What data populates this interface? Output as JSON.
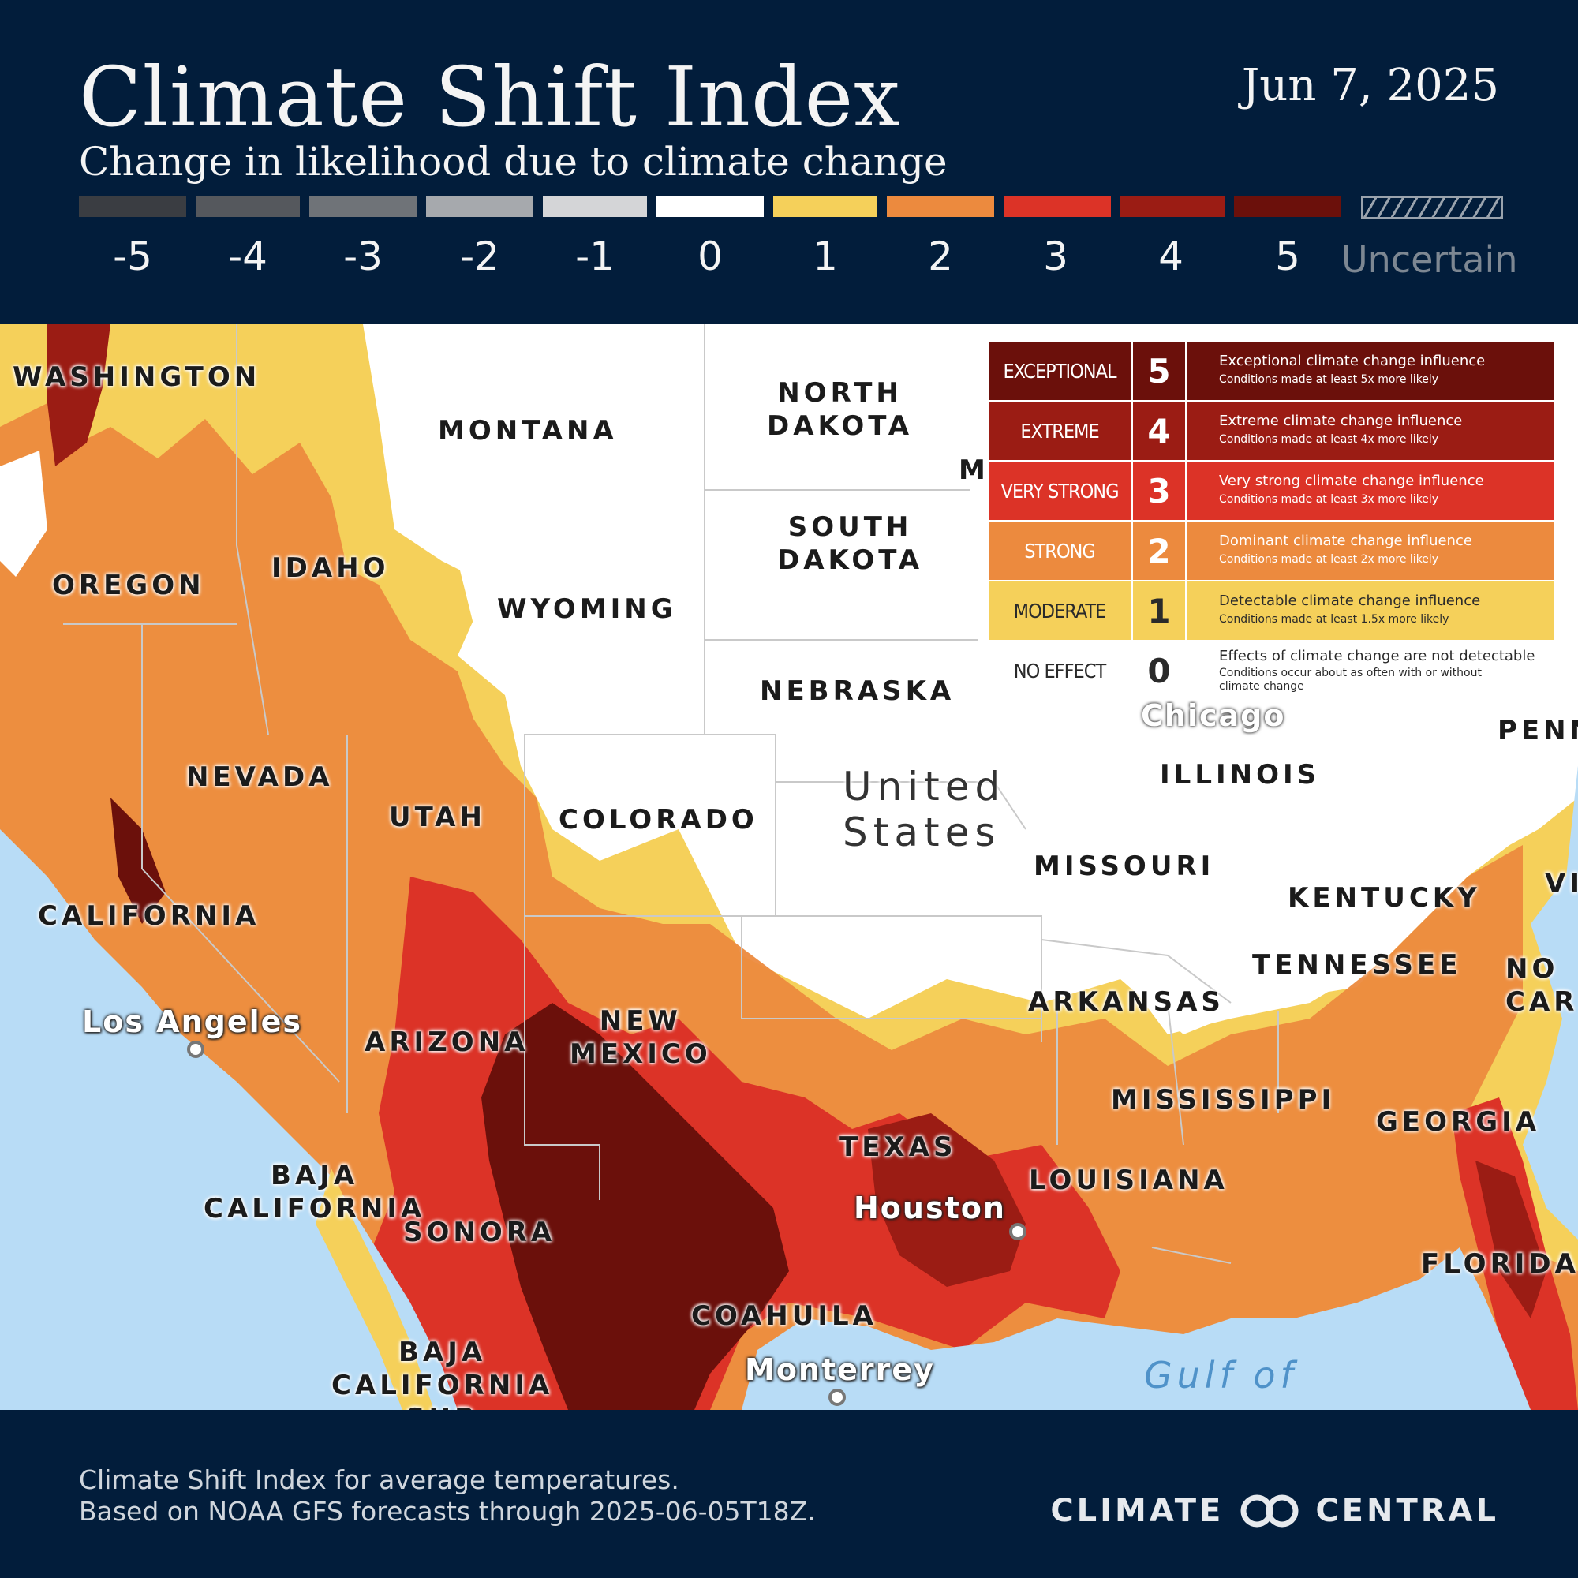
{
  "header": {
    "title": "Climate Shift Index",
    "subtitle": "Change in likelihood due to climate change",
    "date": "Jun 7, 2025"
  },
  "scale": {
    "items": [
      {
        "label": "-5",
        "color": "#3a3d42"
      },
      {
        "label": "-4",
        "color": "#55585d"
      },
      {
        "label": "-3",
        "color": "#6f7378"
      },
      {
        "label": "-2",
        "color": "#a6a9ad"
      },
      {
        "label": "-1",
        "color": "#d4d5d7"
      },
      {
        "label": "0",
        "color": "#ffffff"
      },
      {
        "label": "1",
        "color": "#f5d05a"
      },
      {
        "label": "2",
        "color": "#ec8a3e"
      },
      {
        "label": "3",
        "color": "#dc3327"
      },
      {
        "label": "4",
        "color": "#9b1c14"
      },
      {
        "label": "5",
        "color": "#6b100b"
      }
    ],
    "uncertain_label": "Uncertain"
  },
  "legend": {
    "rows": [
      {
        "category": "EXCEPTIONAL",
        "value": "5",
        "title": "Exceptional climate change influence",
        "detail": "Conditions made at least 5x more likely",
        "bg": "#6b100b",
        "fg": "#ffffff"
      },
      {
        "category": "EXTREME",
        "value": "4",
        "title": "Extreme climate change influence",
        "detail": "Conditions made at least 4x more likely",
        "bg": "#9b1c14",
        "fg": "#ffffff"
      },
      {
        "category": "VERY STRONG",
        "value": "3",
        "title": "Very strong climate change influence",
        "detail": "Conditions made at least 3x more likely",
        "bg": "#dc3327",
        "fg": "#ffffff"
      },
      {
        "category": "STRONG",
        "value": "2",
        "title": "Dominant climate change influence",
        "detail": "Conditions made at least  2x more likely",
        "bg": "#ec8a3e",
        "fg": "#ffffff"
      },
      {
        "category": "MODERATE",
        "value": "1",
        "title": "Detectable climate change influence",
        "detail": "Conditions made at least 1.5x more likely",
        "bg": "#f5d05a",
        "fg": "#2a2a2a"
      },
      {
        "category": "NO EFFECT",
        "value": "0",
        "title": "Effects of climate change are not detectable",
        "detail": "Conditions occur about as often with or without",
        "detail2": "climate change",
        "bg": "#ffffff",
        "fg": "#2a2a2a"
      }
    ]
  },
  "map": {
    "states": [
      "WASHINGTON",
      "MONTANA",
      "NORTH\nDAKOTA",
      "M",
      "OREGON",
      "IDAHO",
      "SOUTH\nDAKOTA",
      "WYOMING",
      "NEBRASKA",
      "PENN",
      "NEVADA",
      "UTAH",
      "COLORADO",
      "United\nStates",
      "ILLINOIS",
      "MISSOURI",
      "KENTUCKY",
      "VI",
      "CALIFORNIA",
      "TENNESSEE",
      "NO\nCAR",
      "ARKANSAS",
      "ARIZONA",
      "NEW\nMEXICO",
      "MISSISSIPPI",
      "GEORGIA",
      "TEXAS",
      "LOUISIANA",
      "BAJA\nCALIFORNIA",
      "SONORA",
      "FLORIDA",
      "COAHUILA",
      "BAJA\nCALIFORNIA\nSUR"
    ],
    "cities": [
      "Los Angeles",
      "Chicago",
      "Houston",
      "Monterrey"
    ],
    "water": "Gulf of"
  },
  "footer": {
    "line1": "Climate Shift Index for average temperatures.",
    "line2": "Based on NOAA GFS forecasts through 2025-06-05T18Z.",
    "brand_left": "CLIMATE",
    "brand_right": "CENTRAL"
  }
}
